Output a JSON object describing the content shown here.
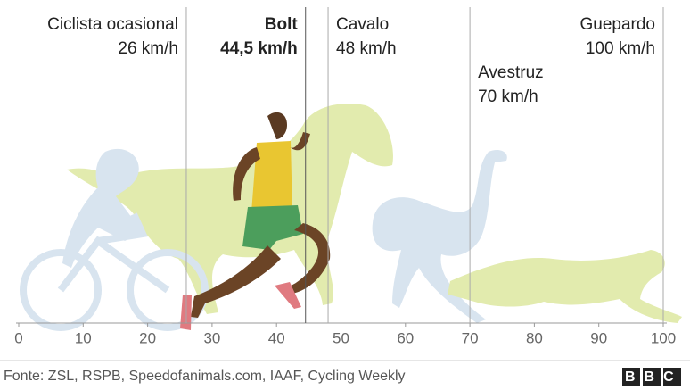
{
  "chart_data": {
    "type": "marker",
    "categories": [
      "Ciclista ocasional",
      "Bolt",
      "Cavalo",
      "Avestruz",
      "Guepardo"
    ],
    "values": [
      26,
      44.5,
      48,
      70,
      100
    ],
    "value_labels": [
      "26 km/h",
      "44,5 km/h",
      "48 km/h",
      "70 km/h",
      "100 km/h"
    ],
    "highlight": "Bolt",
    "xlim": [
      0,
      100
    ],
    "xticks": [
      0,
      10,
      20,
      30,
      40,
      50,
      60,
      70,
      80,
      90,
      100
    ],
    "color": "#888888"
  },
  "footer": {
    "source": "Fonte: ZSL, RSPB, Speedofanimals.com, IAAF, Cycling Weekly",
    "logo": "BBC"
  }
}
